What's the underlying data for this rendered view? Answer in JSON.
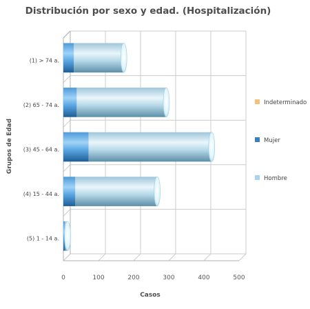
{
  "chart_data": {
    "type": "bar",
    "orientation": "horizontal",
    "stacked": true,
    "style": "3d-cylinder",
    "title": "Distribución por sexo y edad. (Hospitalización)",
    "xlabel": "Casos",
    "ylabel": "Grupos de Edad",
    "categories": [
      "(1) > 74 a.",
      "(2) 65 - 74 a.",
      "(3) 45 - 64 a.",
      "(4) 15 - 44 a.",
      "(5) 1 - 14 a."
    ],
    "series": [
      {
        "name": "Mujer",
        "values": [
          30,
          38,
          72,
          34,
          4
        ]
      },
      {
        "name": "Hombre",
        "values": [
          142,
          255,
          350,
          233,
          8
        ]
      },
      {
        "name": "Indeterminado",
        "values": [
          0,
          0,
          0,
          0,
          0
        ]
      }
    ],
    "xlim": [
      0,
      500
    ],
    "ticks": [
      0,
      100,
      200,
      300,
      400,
      500
    ],
    "grid": true,
    "legend": "right",
    "legend_order": [
      "Indeterminado",
      "Mujer",
      "Hombre"
    ],
    "colors": {
      "Mujer": "#3a7fc4",
      "Hombre": "#a8d4f0",
      "Indeterminado": "#f5c07a"
    }
  }
}
